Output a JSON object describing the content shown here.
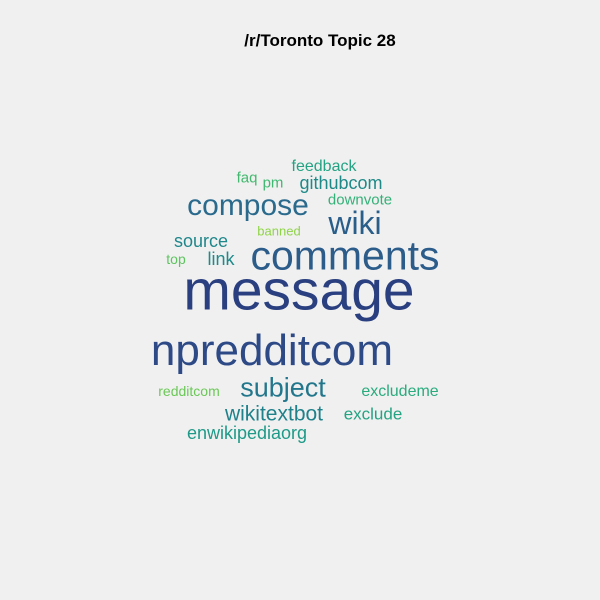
{
  "title": "/r/Toronto Topic 28",
  "words": [
    {
      "text": "message",
      "color": "#2a3f7f"
    },
    {
      "text": "npredditcom",
      "color": "#2d4a87"
    },
    {
      "text": "comments",
      "color": "#2c5c8a"
    },
    {
      "text": "compose",
      "color": "#2a6a8c"
    },
    {
      "text": "wiki",
      "color": "#2a5e8a"
    },
    {
      "text": "subject",
      "color": "#23778c"
    },
    {
      "text": "wikitextbot",
      "color": "#1f818a"
    },
    {
      "text": "source",
      "color": "#20878b"
    },
    {
      "text": "link",
      "color": "#1f8a8a"
    },
    {
      "text": "githubcom",
      "color": "#1e8a88"
    },
    {
      "text": "feedback",
      "color": "#23a383"
    },
    {
      "text": "enwikipediaorg",
      "color": "#1e9a88"
    },
    {
      "text": "exclude",
      "color": "#24a382"
    },
    {
      "text": "excludeme",
      "color": "#2aab7e"
    },
    {
      "text": "downvote",
      "color": "#33b178"
    },
    {
      "text": "faq",
      "color": "#42b96e"
    },
    {
      "text": "pm",
      "color": "#3fb871"
    },
    {
      "text": "top",
      "color": "#5ec45f"
    },
    {
      "text": "redditcom",
      "color": "#6bc857"
    },
    {
      "text": "banned",
      "color": "#8fd447"
    }
  ]
}
